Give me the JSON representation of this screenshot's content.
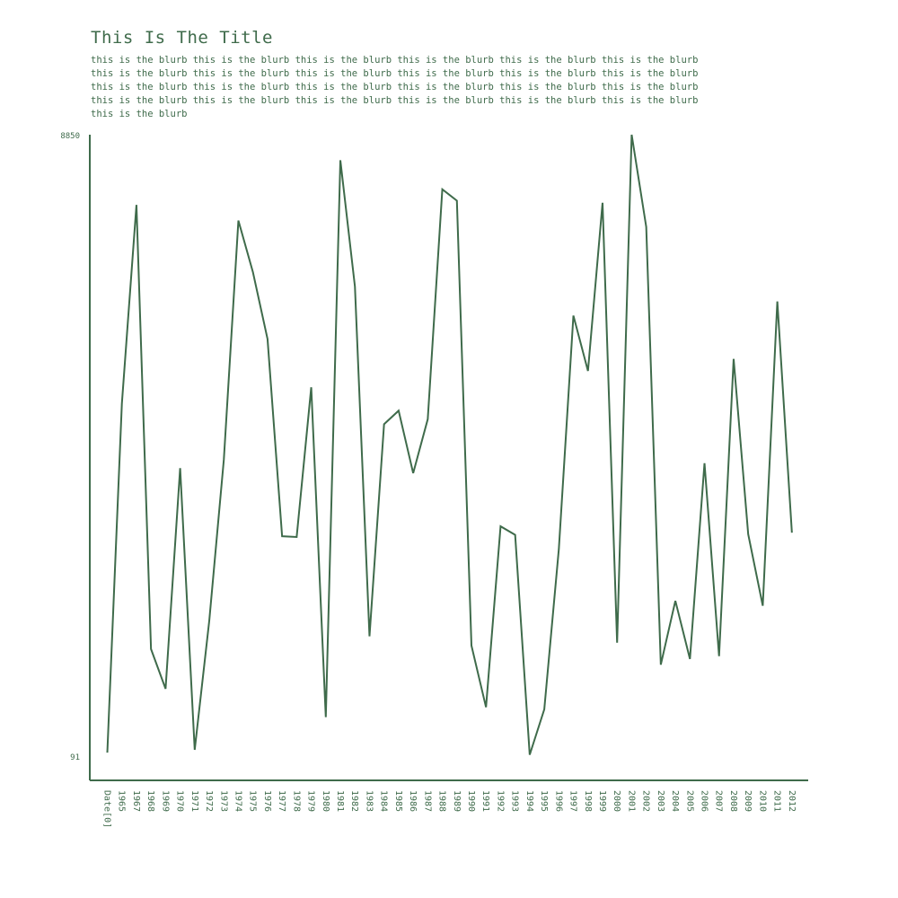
{
  "chart_data": {
    "type": "line",
    "title": "This Is The Title",
    "subtitle": "this is the blurb this is the blurb this is the blurb this is the blurb this is the blurb this is the blurb this is the blurb this is the blurb this is the blurb this is the blurb this is the blurb this is the blurb this is the blurb this is the blurb this is the blurb this is the blurb this is the blurb this is the blurb this is the blurb this is the blurb this is the blurb this is the blurb this is the blurb this is the blurb this is the blurb",
    "x_tick_labels": [
      "Date[0]",
      "1965",
      "1967",
      "1968",
      "1969",
      "1970",
      "1971",
      "1972",
      "1973",
      "1974",
      "1975",
      "1976",
      "1977",
      "1978",
      "1979",
      "1980",
      "1981",
      "1982",
      "1983",
      "1984",
      "1985",
      "1986",
      "1987",
      "1988",
      "1989",
      "1990",
      "1991",
      "1992",
      "1993",
      "1994",
      "1995",
      "1996",
      "1997",
      "1998",
      "1999",
      "2000",
      "2001",
      "2002",
      "2003",
      "2004",
      "2005",
      "2006",
      "2007",
      "2008",
      "2009",
      "2010",
      "2011",
      "2012"
    ],
    "y_tick_labels": [
      "8850",
      "91"
    ],
    "ylim": [
      91,
      8850
    ],
    "line_color": "#3f6b4b",
    "series": [
      {
        "values": [
          140,
          5060,
          7860,
          1600,
          1040,
          4150,
          180,
          2000,
          4270,
          7640,
          6910,
          5970,
          3190,
          3180,
          5290,
          640,
          8490,
          6710,
          1780,
          4770,
          4960,
          4080,
          4840,
          8080,
          7920,
          1650,
          780,
          3330,
          3210,
          110,
          750,
          3010,
          6300,
          5520,
          7890,
          1690,
          8850,
          7550,
          1380,
          2280,
          1460,
          4220,
          1500,
          5690,
          3220,
          2210,
          6500,
          3240
        ]
      }
    ]
  }
}
